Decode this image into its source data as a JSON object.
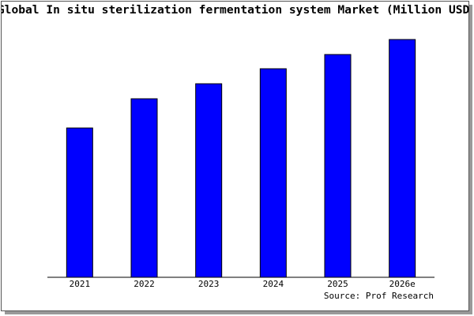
{
  "chart_data": {
    "type": "bar",
    "title": "Global In situ sterilization fermentation system Market (Million USD)",
    "categories": [
      "2021",
      "2022",
      "2023",
      "2024",
      "2025",
      "2026e"
    ],
    "values": [
      189,
      226,
      245,
      264,
      282,
      301
    ],
    "color": "#0000ff",
    "source": "Source: Prof Research"
  }
}
